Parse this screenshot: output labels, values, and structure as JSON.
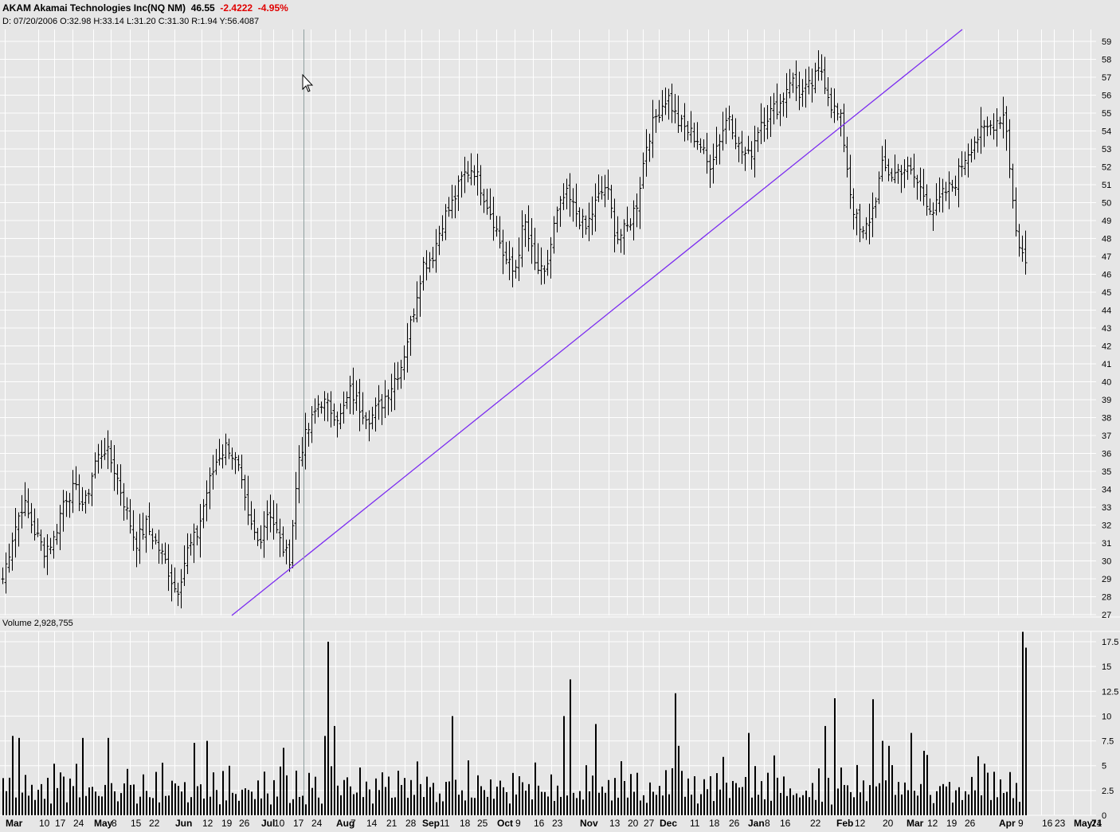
{
  "header": {
    "symbol": "AKAM",
    "name": "Akamai Technologies Inc(NQ NM)",
    "last": "46.55",
    "change": "-2.4222",
    "change_pct": "-4.95%",
    "cursor_readout": "D: 07/20/2006 O:32.98 H:33.14 L:31.20 C:31.30 R:1.94 Y:56.4087"
  },
  "colors": {
    "background": "#e6e6e6",
    "grid": "#ffffff",
    "bars": "#000000",
    "trendline": "#7b2cf0",
    "negative": "#e00000",
    "cursor_line": "#8fa0a0"
  },
  "chart_data": [
    {
      "type": "ohlc",
      "title": "AKAM Akamai Technologies Inc(NQ NM)",
      "ylim": [
        27,
        59.5
      ],
      "y_ticks": [
        "27",
        "28",
        "29",
        "30",
        "31",
        "32",
        "33",
        "34",
        "35",
        "36",
        "37",
        "38",
        "39",
        "40",
        "41",
        "42",
        "43",
        "44",
        "45",
        "46",
        "47",
        "48",
        "49",
        "50",
        "51",
        "52",
        "53",
        "54",
        "55",
        "56",
        "57",
        "58",
        "59"
      ],
      "x_ticks": [
        {
          "label": "Mar",
          "month": true
        },
        {
          "label": "10"
        },
        {
          "label": "17"
        },
        {
          "label": "24"
        },
        {
          "label": "May",
          "month": true
        },
        {
          "label": "8"
        },
        {
          "label": "15"
        },
        {
          "label": "22"
        },
        {
          "label": "Jun",
          "month": true
        },
        {
          "label": "12"
        },
        {
          "label": "19"
        },
        {
          "label": "26"
        },
        {
          "label": "Jul",
          "month": true
        },
        {
          "label": "10"
        },
        {
          "label": "17"
        },
        {
          "label": "24"
        },
        {
          "label": "Aug",
          "month": true
        },
        {
          "label": "7"
        },
        {
          "label": "14"
        },
        {
          "label": "21"
        },
        {
          "label": "28"
        },
        {
          "label": "Sep",
          "month": true
        },
        {
          "label": "11"
        },
        {
          "label": "18"
        },
        {
          "label": "25"
        },
        {
          "label": "Oct",
          "month": true
        },
        {
          "label": "9"
        },
        {
          "label": "16"
        },
        {
          "label": "23"
        },
        {
          "label": "Nov",
          "month": true
        },
        {
          "label": "13"
        },
        {
          "label": "20"
        },
        {
          "label": "27"
        },
        {
          "label": "Dec",
          "month": true
        },
        {
          "label": "11"
        },
        {
          "label": "18"
        },
        {
          "label": "26"
        },
        {
          "label": "Jan",
          "month": true
        },
        {
          "label": "8"
        },
        {
          "label": "16"
        },
        {
          "label": "22"
        },
        {
          "label": "Feb",
          "month": true
        },
        {
          "label": "12"
        },
        {
          "label": "20"
        },
        {
          "label": "Mar",
          "month": true
        },
        {
          "label": "12"
        },
        {
          "label": "19"
        },
        {
          "label": "26"
        },
        {
          "label": "Apr",
          "month": true
        },
        {
          "label": "9"
        },
        {
          "label": "16"
        },
        {
          "label": "23"
        },
        {
          "label": "May",
          "month": true
        },
        {
          "label": "7"
        },
        {
          "label": "14"
        },
        {
          "label": "21"
        }
      ],
      "anchors": [
        29.0,
        31.5,
        33.3,
        31.8,
        30.6,
        31.2,
        33.5,
        34.0,
        33.0,
        35.5,
        36.3,
        35.0,
        33.0,
        31.0,
        32.0,
        31.0,
        29.8,
        28.2,
        30.5,
        31.5,
        34.0,
        35.8,
        36.5,
        35.2,
        32.2,
        31.0,
        33.0,
        31.2,
        30.0,
        36.0,
        37.5,
        39.0,
        38.5,
        38.0,
        39.5,
        38.5,
        38.0,
        38.8,
        39.8,
        41.0,
        43.5,
        46.5,
        47.0,
        49.0,
        50.0,
        51.5,
        52.0,
        50.5,
        49.0,
        47.0,
        46.0,
        49.0,
        46.5,
        45.8,
        49.0,
        50.5,
        49.5,
        48.5,
        50.0,
        51.0,
        48.0,
        48.5,
        50.0,
        53.5,
        55.0,
        56.0,
        54.5,
        54.0,
        53.5,
        52.0,
        53.5,
        55.0,
        53.0,
        52.5,
        54.5,
        55.0,
        55.5,
        57.0,
        56.0,
        56.5,
        57.5,
        55.5,
        54.5,
        50.0,
        48.0,
        49.5,
        52.0,
        51.5,
        52.0,
        51.5,
        50.5,
        49.5,
        50.5,
        51.0,
        52.5,
        53.5,
        54.0,
        54.5,
        55.0,
        48.5,
        46.5
      ],
      "volume": {
        "label": "Volume",
        "last": "2,928,755",
        "ylim": [
          0,
          18.5
        ],
        "y_ticks": [
          "0",
          "2.5",
          "5",
          "7.5",
          "10",
          "12.5",
          "15",
          "17.5"
        ],
        "baseline_pattern": [
          3.5,
          2.0,
          4.5,
          2.8,
          1.8,
          3.2,
          2.4,
          4.0,
          2.2,
          3.0,
          1.9,
          2.6,
          3.8,
          2.3,
          2.9,
          1.7
        ],
        "spikes": [
          {
            "bar": 3,
            "v": 8.0
          },
          {
            "bar": 5,
            "v": 7.8
          },
          {
            "bar": 16,
            "v": 5.2
          },
          {
            "bar": 25,
            "v": 7.8
          },
          {
            "bar": 33,
            "v": 7.8
          },
          {
            "bar": 60,
            "v": 7.3
          },
          {
            "bar": 64,
            "v": 7.5
          },
          {
            "bar": 88,
            "v": 6.8
          },
          {
            "bar": 101,
            "v": 8.0
          },
          {
            "bar": 102,
            "v": 17.5
          },
          {
            "bar": 104,
            "v": 9.0
          },
          {
            "bar": 141,
            "v": 10.0
          },
          {
            "bar": 178,
            "v": 13.7
          },
          {
            "bar": 176,
            "v": 10.0
          },
          {
            "bar": 186,
            "v": 9.2
          },
          {
            "bar": 211,
            "v": 12.3
          },
          {
            "bar": 212,
            "v": 7.0
          },
          {
            "bar": 234,
            "v": 8.3
          },
          {
            "bar": 258,
            "v": 9.0
          },
          {
            "bar": 261,
            "v": 11.8
          },
          {
            "bar": 273,
            "v": 11.7
          },
          {
            "bar": 276,
            "v": 7.5
          },
          {
            "bar": 278,
            "v": 7.0
          },
          {
            "bar": 285,
            "v": 8.3
          },
          {
            "bar": 289,
            "v": 6.5
          },
          {
            "bar": 308,
            "v": 5.2
          },
          {
            "bar": 320,
            "v": 18.5
          },
          {
            "bar": 321,
            "v": 16.9
          }
        ]
      }
    }
  ]
}
